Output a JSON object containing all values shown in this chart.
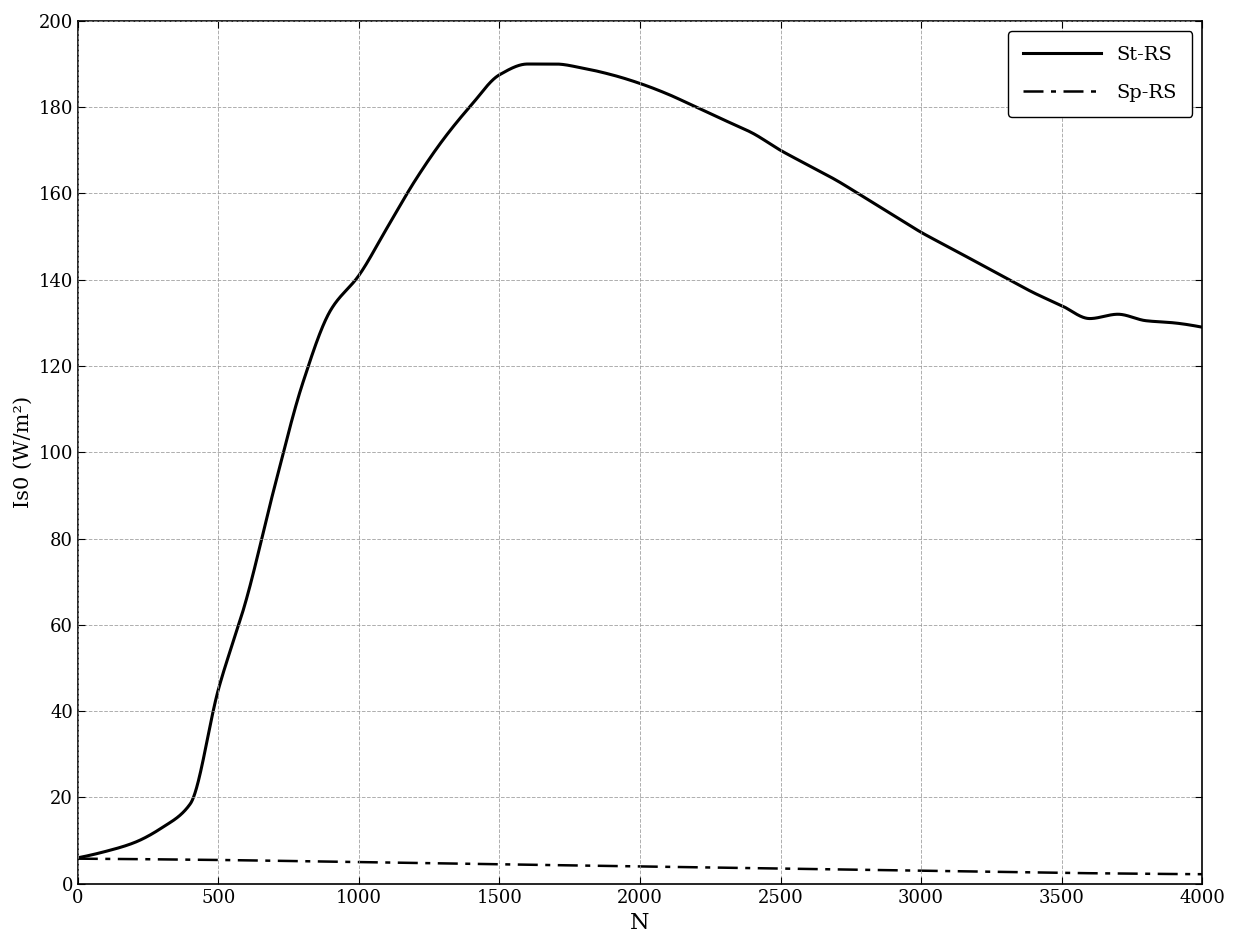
{
  "title": "",
  "xlabel": "N",
  "ylabel": "Is0 (W/m²)",
  "xlim": [
    0,
    4000
  ],
  "ylim": [
    0,
    200
  ],
  "xticks": [
    0,
    500,
    1000,
    1500,
    2000,
    2500,
    3000,
    3500,
    4000
  ],
  "yticks": [
    0,
    20,
    40,
    60,
    80,
    100,
    120,
    140,
    160,
    180,
    200
  ],
  "legend": [
    "St-RS",
    "Sp-RS"
  ],
  "line_color": "#000000",
  "background_color": "#ffffff",
  "grid_color": "#999999",
  "st_rs_N": [
    0,
    100,
    200,
    300,
    400,
    500,
    600,
    700,
    800,
    900,
    1000,
    1100,
    1200,
    1300,
    1400,
    1500,
    1600,
    1700,
    1800,
    1900,
    2000,
    2100,
    2200,
    2300,
    2400,
    2500,
    2600,
    2700,
    2800,
    2900,
    3000,
    3100,
    3200,
    3300,
    3400,
    3500,
    3600,
    3700,
    3800,
    3900,
    4000
  ],
  "st_rs_I": [
    6.0,
    7.5,
    9.5,
    13.0,
    18.5,
    45.0,
    66.0,
    92.0,
    116.0,
    133.0,
    141.0,
    152.0,
    163.0,
    172.5,
    180.5,
    187.5,
    190.0,
    190.0,
    189.0,
    187.5,
    185.5,
    183.0,
    180.0,
    177.0,
    174.0,
    170.0,
    166.5,
    163.0,
    159.0,
    155.0,
    151.0,
    147.5,
    144.0,
    140.5,
    137.0,
    134.0,
    131.0,
    132.0,
    130.5,
    130.0,
    129.0
  ],
  "sp_rs_N": [
    0,
    500,
    1000,
    1500,
    2000,
    2500,
    3000,
    3500,
    4000
  ],
  "sp_rs_I": [
    5.8,
    5.5,
    5.0,
    4.5,
    4.0,
    3.5,
    3.0,
    2.5,
    2.2
  ]
}
